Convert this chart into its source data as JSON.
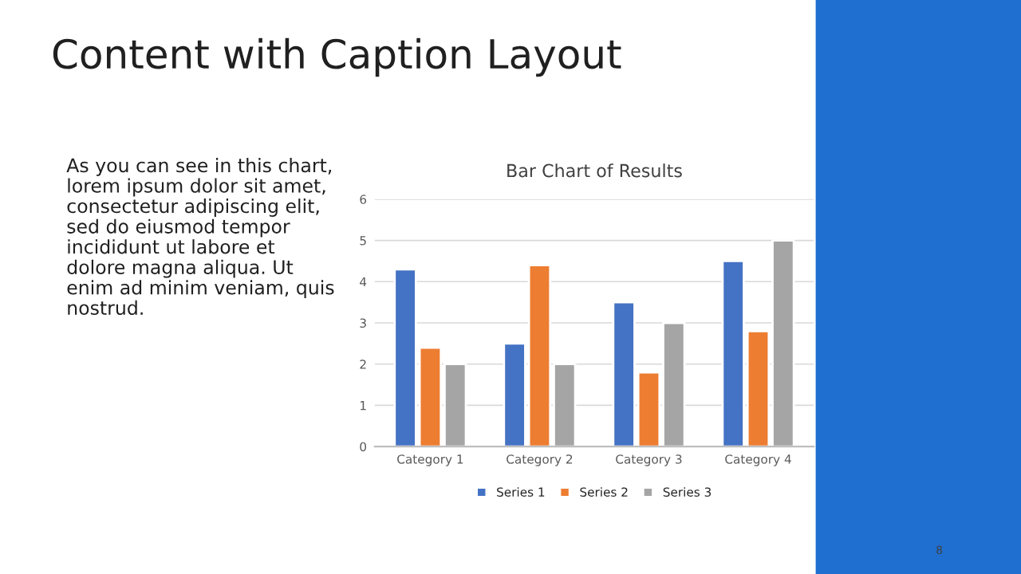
{
  "chart_data": {
    "type": "bar",
    "title": "Bar Chart of Results",
    "categories": [
      "Category 1",
      "Category 2",
      "Category 3",
      "Category 4"
    ],
    "series": [
      {
        "name": "Series 1",
        "color": "#4472c4",
        "values": [
          4.3,
          2.5,
          3.5,
          4.5
        ]
      },
      {
        "name": "Series 2",
        "color": "#ed7d31",
        "values": [
          2.4,
          4.4,
          1.8,
          2.8
        ]
      },
      {
        "name": "Series 3",
        "color": "#a5a5a5",
        "values": [
          2,
          2,
          3,
          5
        ]
      }
    ],
    "ylim": [
      0,
      6
    ],
    "yticks": [
      0,
      1,
      2,
      3,
      4,
      5,
      6
    ],
    "grid": "y",
    "legend": "bottom",
    "annotations": [
      "Content with Caption Layout",
      "As you can see in this chart,\nlorem ipsum dolor sit amet,\nconsectetur adipiscing elit,\nsed do eiusmod tempor\nincididunt ut labore et\ndolore magna aliqua. Ut\nenim ad minim veniam, quis\nnostrud.",
      "8"
    ]
  }
}
